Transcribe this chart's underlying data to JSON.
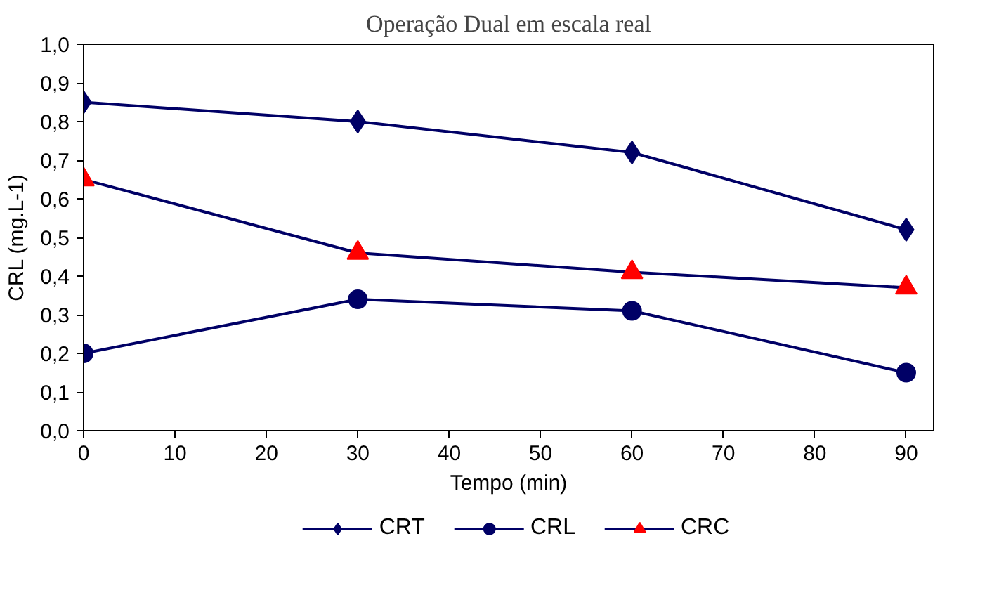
{
  "chart_data": {
    "type": "line",
    "title": "Operação Dual em escala real",
    "xlabel": "Tempo (min)",
    "ylabel": "CRL (mg.L-1)",
    "x": [
      0,
      30,
      60,
      90
    ],
    "series": [
      {
        "name": "CRT",
        "color": "#000066",
        "marker": "diamond",
        "values": [
          0.85,
          0.8,
          0.72,
          0.52
        ]
      },
      {
        "name": "CRL",
        "color": "#000066",
        "marker": "circle",
        "values": [
          0.2,
          0.34,
          0.31,
          0.15
        ]
      },
      {
        "name": "CRC",
        "color": "#000066",
        "colors": [
          "#ff0000",
          "#ff0000",
          "#ff0000",
          "#ff0000"
        ],
        "marker": "triangle",
        "values": [
          0.65,
          0.46,
          0.41,
          0.37
        ]
      }
    ],
    "xlim": [
      0,
      93
    ],
    "xticks": [
      0,
      10,
      20,
      30,
      40,
      50,
      60,
      70,
      80,
      90
    ],
    "ylim": [
      0,
      1
    ],
    "yticks": [
      {
        "value": 0,
        "label": "0,0"
      },
      {
        "value": 0.1,
        "label": "0,1"
      },
      {
        "value": 0.2,
        "label": "0,2"
      },
      {
        "value": 0.3,
        "label": "0,3"
      },
      {
        "value": 0.4,
        "label": "0,4"
      },
      {
        "value": 0.5,
        "label": "0,5"
      },
      {
        "value": 0.6,
        "label": "0,6"
      },
      {
        "value": 0.7,
        "label": "0,7"
      },
      {
        "value": 0.8,
        "label": "0,8"
      },
      {
        "value": 0.9,
        "label": "0,9"
      },
      {
        "value": 1,
        "label": "1,0"
      }
    ],
    "grid": false,
    "legend": "bottom",
    "line_style": "solid"
  }
}
